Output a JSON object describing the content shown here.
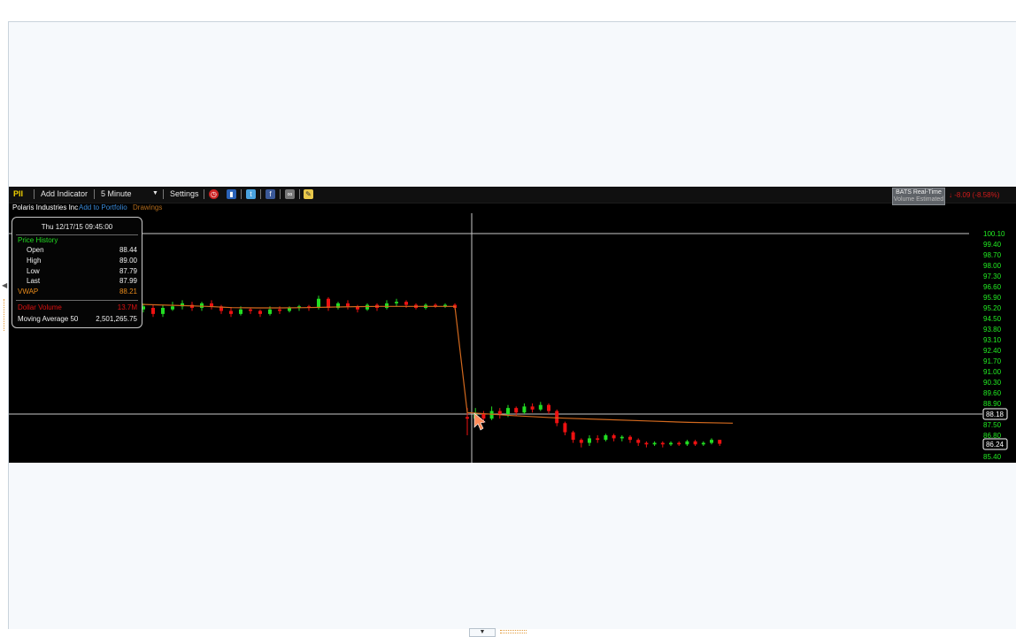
{
  "toolbar": {
    "symbol": "PII",
    "add_indicator": "Add Indicator",
    "interval": "5 Minute",
    "interval_arrow": "▼",
    "settings": "Settings",
    "icons": [
      "clock-icon",
      "book-icon",
      "twitter-icon",
      "facebook-icon",
      "glasses-icon",
      "note-icon"
    ]
  },
  "subbar": {
    "company": "Polaris Industries Inc",
    "add_portfolio": "Add to Portfolio",
    "drawings": "Drawings"
  },
  "feed": {
    "line1": "BATS Real-Time",
    "line2": "Volume Estimated"
  },
  "change": "↓ -8.09 (-8.58%)",
  "infobox": {
    "datetime": "Thu 12/17/15 09:45:00",
    "section": "Price History",
    "open_label": "Open",
    "open": "88.44",
    "high_label": "High",
    "high": "89.00",
    "low_label": "Low",
    "low": "87.79",
    "last_label": "Last",
    "last": "87.99",
    "vwap_label": "VWAP",
    "vwap": "88.21",
    "dollar_label": "Dollar Volume",
    "dollar": "13.7M",
    "ma_label": "Moving Average 50",
    "ma": "2,501,265.75"
  },
  "colors": {
    "up": "#22dd22",
    "down": "#ee1111",
    "vwap_line": "#d2691e",
    "axis_text": "#22ee22",
    "crosshair": "#c8c8c8"
  },
  "axis": {
    "ticks": [
      "100.10",
      "99.40",
      "98.70",
      "98.00",
      "97.30",
      "96.60",
      "95.90",
      "95.20",
      "94.50",
      "93.80",
      "93.10",
      "92.40",
      "91.70",
      "91.00",
      "90.30",
      "89.60",
      "88.90",
      "87.50",
      "86.80",
      "85.40"
    ],
    "crosshair_price": "88.18",
    "last_price": "86.24",
    "ymin": 85.4,
    "ymax": 100.1
  },
  "chart_data": {
    "type": "candlestick",
    "symbol": "PII",
    "interval": "5 Minute",
    "vwap": [
      95.45,
      95.4,
      95.35,
      95.3,
      95.22,
      95.2,
      95.2,
      95.22,
      95.25,
      95.28,
      95.3,
      95.3,
      95.3,
      95.3,
      88.3,
      88.1,
      87.95,
      87.85,
      87.75,
      87.65,
      87.6
    ],
    "candles": [
      {
        "o": 95.1,
        "c": 95.3,
        "h": 95.5,
        "l": 94.9
      },
      {
        "o": 95.2,
        "c": 94.8,
        "h": 95.4,
        "l": 94.6
      },
      {
        "o": 94.8,
        "c": 95.2,
        "h": 95.4,
        "l": 94.6
      },
      {
        "o": 95.1,
        "c": 95.3,
        "h": 95.6,
        "l": 95.0
      },
      {
        "o": 95.3,
        "c": 95.5,
        "h": 95.7,
        "l": 95.1
      },
      {
        "o": 95.4,
        "c": 95.2,
        "h": 95.6,
        "l": 95.0
      },
      {
        "o": 95.2,
        "c": 95.5,
        "h": 95.6,
        "l": 95.0
      },
      {
        "o": 95.5,
        "c": 95.3,
        "h": 95.7,
        "l": 95.1
      },
      {
        "o": 95.3,
        "c": 95.0,
        "h": 95.4,
        "l": 94.8
      },
      {
        "o": 95.0,
        "c": 94.8,
        "h": 95.2,
        "l": 94.6
      },
      {
        "o": 94.8,
        "c": 95.1,
        "h": 95.3,
        "l": 94.7
      },
      {
        "o": 95.1,
        "c": 95.0,
        "h": 95.2,
        "l": 94.8
      },
      {
        "o": 95.0,
        "c": 94.8,
        "h": 95.1,
        "l": 94.6
      },
      {
        "o": 94.8,
        "c": 95.1,
        "h": 95.3,
        "l": 94.7
      },
      {
        "o": 95.1,
        "c": 95.0,
        "h": 95.3,
        "l": 94.8
      },
      {
        "o": 95.0,
        "c": 95.2,
        "h": 95.3,
        "l": 94.9
      },
      {
        "o": 95.2,
        "c": 95.3,
        "h": 95.4,
        "l": 95.0
      },
      {
        "o": 95.3,
        "c": 95.2,
        "h": 95.4,
        "l": 95.0
      },
      {
        "o": 95.2,
        "c": 95.8,
        "h": 96.0,
        "l": 95.1
      },
      {
        "o": 95.8,
        "c": 95.2,
        "h": 95.9,
        "l": 95.0
      },
      {
        "o": 95.2,
        "c": 95.5,
        "h": 95.6,
        "l": 95.1
      },
      {
        "o": 95.5,
        "c": 95.3,
        "h": 95.7,
        "l": 95.1
      },
      {
        "o": 95.3,
        "c": 95.1,
        "h": 95.4,
        "l": 94.9
      },
      {
        "o": 95.1,
        "c": 95.4,
        "h": 95.5,
        "l": 95.0
      },
      {
        "o": 95.4,
        "c": 95.2,
        "h": 95.5,
        "l": 95.0
      },
      {
        "o": 95.2,
        "c": 95.5,
        "h": 95.7,
        "l": 95.1
      },
      {
        "o": 95.5,
        "c": 95.6,
        "h": 95.8,
        "l": 95.3
      },
      {
        "o": 95.6,
        "c": 95.4,
        "h": 95.7,
        "l": 95.2
      },
      {
        "o": 95.4,
        "c": 95.2,
        "h": 95.5,
        "l": 95.1
      },
      {
        "o": 95.2,
        "c": 95.4,
        "h": 95.5,
        "l": 95.1
      },
      {
        "o": 95.4,
        "c": 95.3,
        "h": 95.5,
        "l": 95.2
      },
      {
        "o": 95.3,
        "c": 95.4,
        "h": 95.5,
        "l": 95.2
      },
      {
        "o": 95.4,
        "c": 95.2,
        "h": 95.5,
        "l": 95.1
      },
      {
        "o": 88.0,
        "c": 87.9,
        "h": 88.6,
        "l": 86.8
      },
      {
        "o": 87.9,
        "c": 88.2,
        "h": 88.6,
        "l": 87.7
      },
      {
        "o": 88.2,
        "c": 87.9,
        "h": 88.4,
        "l": 87.6
      },
      {
        "o": 87.9,
        "c": 88.4,
        "h": 88.7,
        "l": 87.8
      },
      {
        "o": 88.4,
        "c": 88.2,
        "h": 88.6,
        "l": 87.9
      },
      {
        "o": 88.2,
        "c": 88.6,
        "h": 88.8,
        "l": 88.0
      },
      {
        "o": 88.6,
        "c": 88.3,
        "h": 88.7,
        "l": 88.1
      },
      {
        "o": 88.3,
        "c": 88.7,
        "h": 88.9,
        "l": 88.2
      },
      {
        "o": 88.7,
        "c": 88.5,
        "h": 88.9,
        "l": 88.3
      },
      {
        "o": 88.5,
        "c": 88.8,
        "h": 89.0,
        "l": 88.4
      },
      {
        "o": 88.8,
        "c": 88.4,
        "h": 88.9,
        "l": 88.2
      },
      {
        "o": 88.4,
        "c": 87.6,
        "h": 88.5,
        "l": 87.4
      },
      {
        "o": 87.6,
        "c": 87.0,
        "h": 87.7,
        "l": 86.8
      },
      {
        "o": 87.0,
        "c": 86.5,
        "h": 87.1,
        "l": 86.3
      },
      {
        "o": 86.5,
        "c": 86.3,
        "h": 86.6,
        "l": 86.0
      },
      {
        "o": 86.3,
        "c": 86.6,
        "h": 86.8,
        "l": 86.1
      },
      {
        "o": 86.6,
        "c": 86.5,
        "h": 86.8,
        "l": 86.3
      },
      {
        "o": 86.5,
        "c": 86.8,
        "h": 86.9,
        "l": 86.4
      },
      {
        "o": 86.8,
        "c": 86.6,
        "h": 86.9,
        "l": 86.4
      },
      {
        "o": 86.6,
        "c": 86.7,
        "h": 86.8,
        "l": 86.4
      },
      {
        "o": 86.7,
        "c": 86.5,
        "h": 86.8,
        "l": 86.3
      },
      {
        "o": 86.5,
        "c": 86.3,
        "h": 86.6,
        "l": 86.1
      },
      {
        "o": 86.3,
        "c": 86.2,
        "h": 86.4,
        "l": 86.0
      },
      {
        "o": 86.2,
        "c": 86.3,
        "h": 86.4,
        "l": 86.1
      },
      {
        "o": 86.3,
        "c": 86.2,
        "h": 86.4,
        "l": 86.0
      },
      {
        "o": 86.2,
        "c": 86.3,
        "h": 86.4,
        "l": 86.1
      },
      {
        "o": 86.3,
        "c": 86.2,
        "h": 86.4,
        "l": 86.1
      },
      {
        "o": 86.2,
        "c": 86.4,
        "h": 86.5,
        "l": 86.1
      },
      {
        "o": 86.4,
        "c": 86.2,
        "h": 86.5,
        "l": 86.1
      },
      {
        "o": 86.2,
        "c": 86.3,
        "h": 86.4,
        "l": 86.1
      },
      {
        "o": 86.3,
        "c": 86.5,
        "h": 86.6,
        "l": 86.2
      },
      {
        "o": 86.5,
        "c": 86.24,
        "h": 86.5,
        "l": 86.1
      }
    ]
  }
}
